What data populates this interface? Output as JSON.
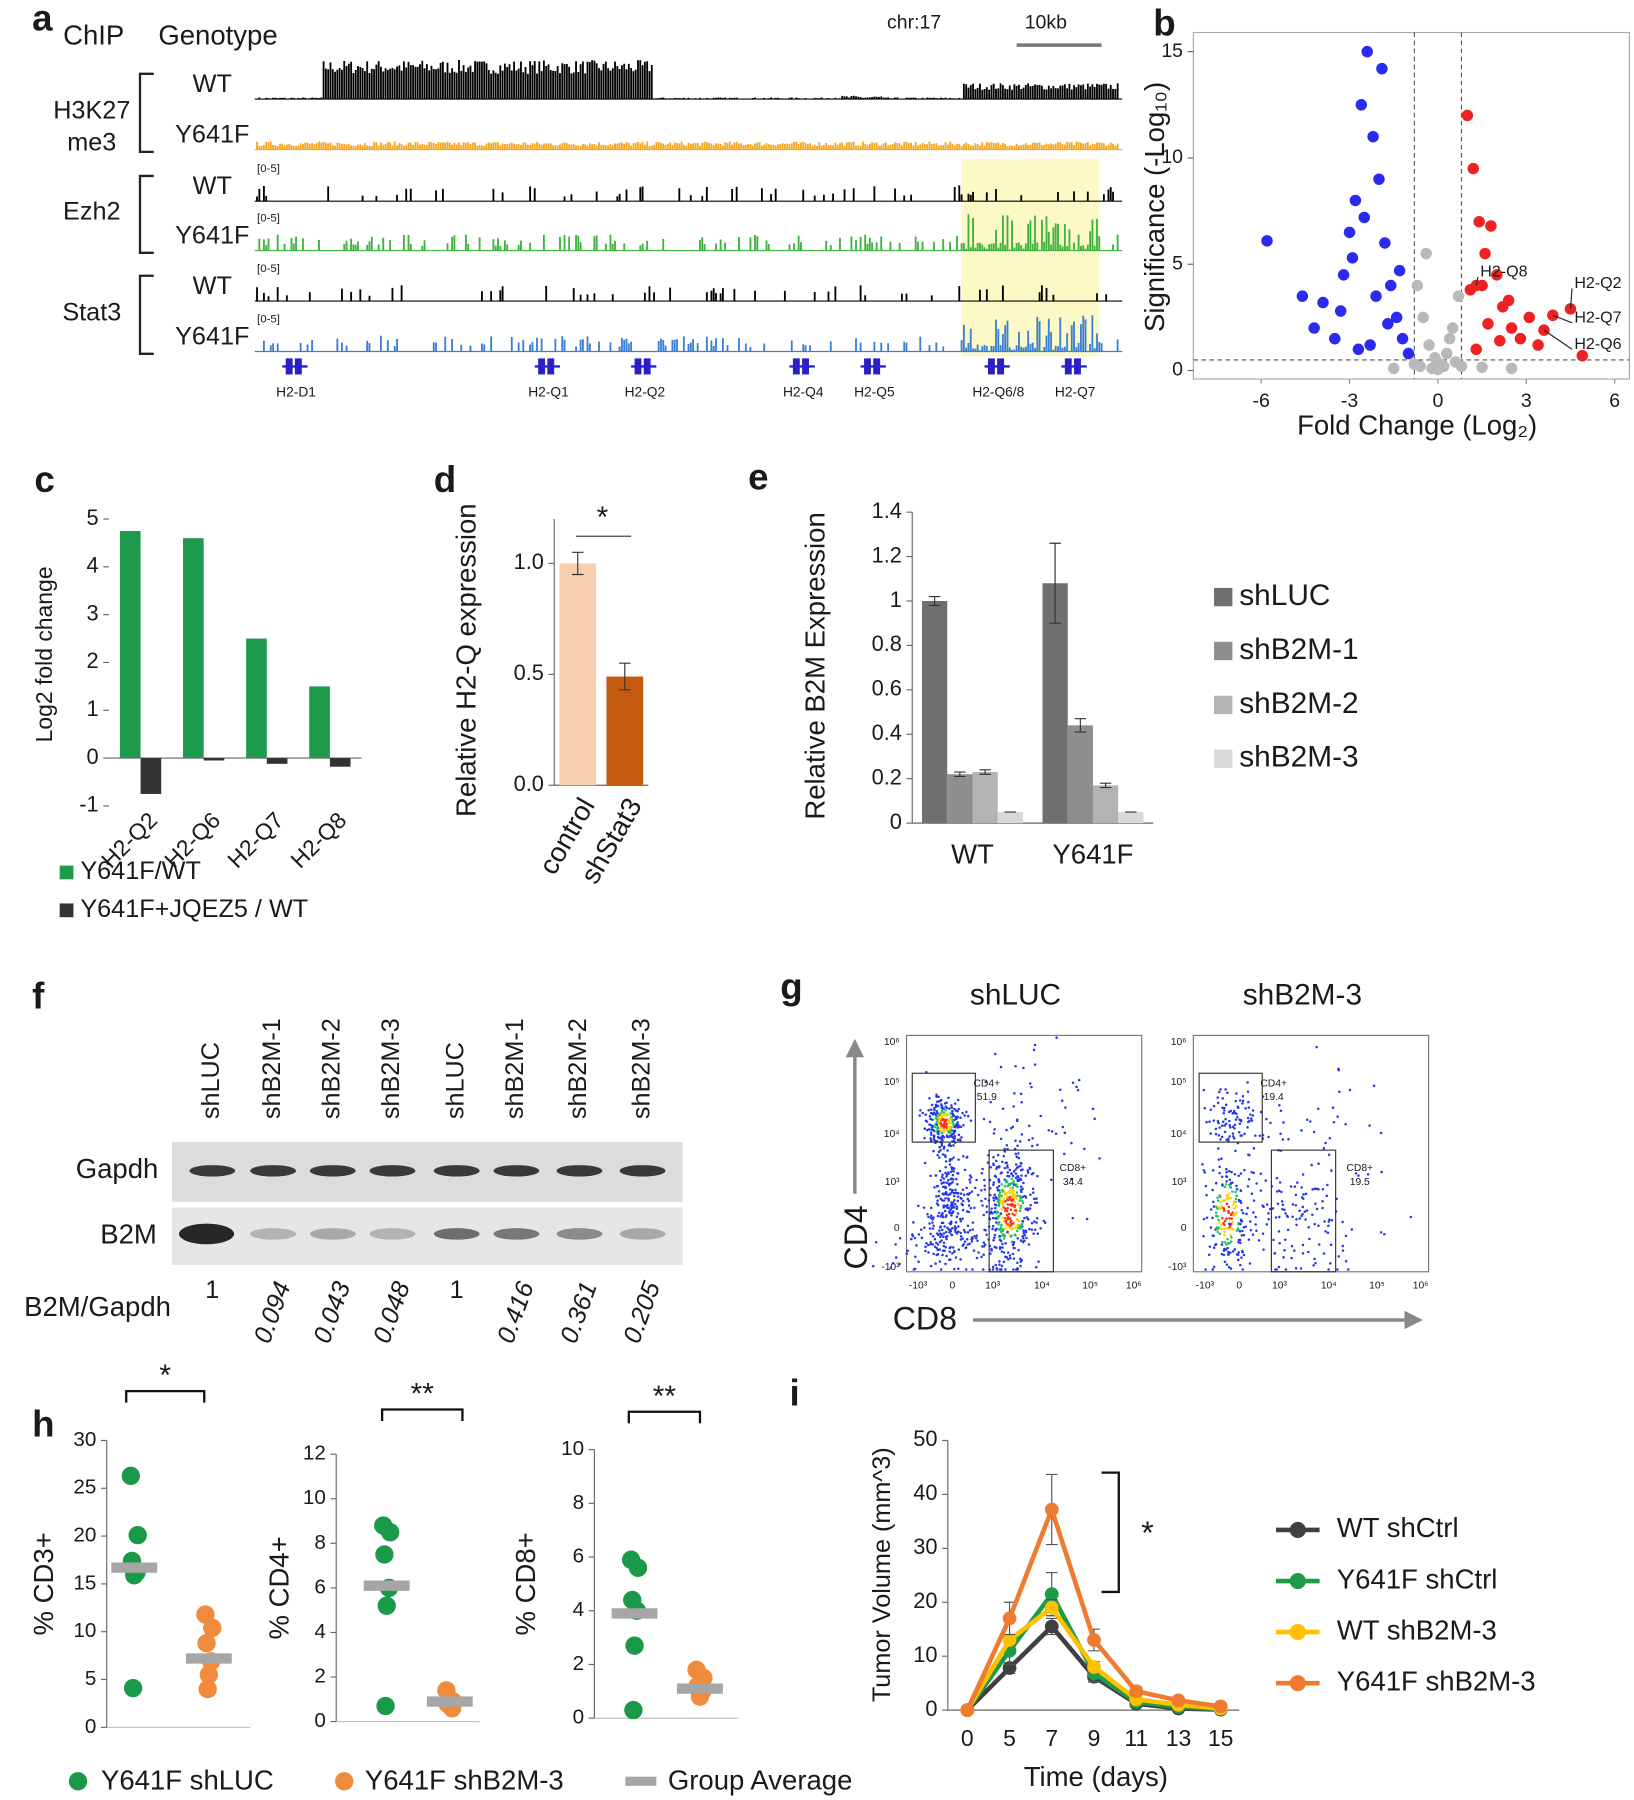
{
  "chart_data": [
    {
      "type": "tracks",
      "label": "a",
      "headers": [
        "ChIP",
        "Genotype"
      ],
      "locus": "chr:17",
      "scale_label": "10kb",
      "range_label": "[0-5]",
      "groups": [
        {
          "name": [
            "H3K27",
            "me3"
          ],
          "tracks": [
            {
              "genotype": "WT",
              "color": "#000000"
            },
            {
              "genotype": "Y641F",
              "color": "#f5a623"
            }
          ]
        },
        {
          "name": [
            "Ezh2"
          ],
          "tracks": [
            {
              "genotype": "WT",
              "color": "#000000"
            },
            {
              "genotype": "Y641F",
              "color": "#3cb33c"
            }
          ]
        },
        {
          "name": [
            "Stat3"
          ],
          "tracks": [
            {
              "genotype": "WT",
              "color": "#000000"
            },
            {
              "genotype": "Y641F",
              "color": "#3a7fd5"
            }
          ]
        }
      ],
      "genes": [
        "H2-D1",
        "H2-Q1",
        "H2-Q2",
        "H2-Q4",
        "H2-Q5",
        "H2-Q6/8",
        "H2-Q7"
      ],
      "gene_color": "#2a1fc4",
      "highlight_color": "#fdf9c6"
    },
    {
      "type": "scatter",
      "label": "b",
      "xlabel": "Fold Change (Log₂)",
      "ylabel": "Significance (-Log₁₀)",
      "xlim": [
        -8.3,
        6.5
      ],
      "ylim": [
        -0.4,
        15.9
      ],
      "xticks": [
        -6,
        -3,
        0,
        3,
        6
      ],
      "yticks": [
        0,
        5,
        10,
        15
      ],
      "vlines": [
        -0.8,
        0.8
      ],
      "hline": 0.5,
      "series": [
        {
          "color": "#2b2bf0",
          "x": [
            -5.8,
            -4.6,
            -4.2,
            -3.9,
            -3.5,
            -3.2,
            -3.0,
            -2.8,
            -2.6,
            -2.4,
            -2.2,
            -2.0,
            -1.8,
            -1.6,
            -1.4,
            -1.2,
            -1.0,
            -3.3,
            -2.9,
            -2.5,
            -2.1,
            -1.7,
            -1.3,
            -2.7,
            -2.3,
            -1.9
          ],
          "y": [
            6.1,
            3.5,
            2.0,
            3.2,
            1.5,
            4.5,
            6.5,
            8.0,
            12.5,
            15.0,
            11.0,
            9.0,
            6.0,
            4.0,
            2.5,
            1.5,
            0.8,
            2.8,
            5.3,
            7.2,
            3.5,
            2.2,
            4.7,
            1.0,
            1.2,
            14.2
          ]
        },
        {
          "color": "#b9b9b9",
          "x": [
            -0.7,
            -0.5,
            -0.3,
            -0.1,
            0.1,
            0.3,
            0.5,
            0.7,
            -0.6,
            -0.2,
            0.2,
            0.6,
            -0.4,
            0,
            0.4,
            -0.8,
            0.8,
            -1.5,
            1.5,
            2.5
          ],
          "y": [
            4.0,
            2.5,
            1.2,
            0.6,
            0.3,
            0.8,
            2.0,
            3.5,
            0.2,
            0.1,
            0.2,
            0.4,
            5.5,
            0.05,
            1.5,
            0.3,
            0.2,
            0.1,
            0.15,
            0.1
          ]
        },
        {
          "color": "#ee2222",
          "x": [
            1.0,
            1.2,
            1.4,
            1.6,
            1.8,
            2.0,
            2.2,
            2.5,
            2.8,
            3.1,
            3.4,
            3.9,
            4.5,
            4.9,
            1.1,
            1.3,
            1.7,
            2.1,
            1.5,
            2.4,
            1.3,
            3.6
          ],
          "y": [
            12.0,
            9.5,
            7.0,
            5.5,
            6.8,
            4.5,
            3.0,
            2.0,
            1.5,
            2.5,
            1.2,
            2.6,
            2.9,
            0.7,
            3.8,
            1.0,
            2.2,
            1.4,
            4.0,
            3.3,
            4.0,
            1.9
          ]
        }
      ],
      "annotations": [
        {
          "text": "H2-Q8",
          "x": 1.3,
          "y": 4.0
        },
        {
          "text": "H2-Q2",
          "x": 4.5,
          "y": 2.9
        },
        {
          "text": "H2-Q7",
          "x": 3.9,
          "y": 2.6
        },
        {
          "text": "H2-Q6",
          "x": 3.6,
          "y": 1.9
        }
      ]
    },
    {
      "type": "bar",
      "label": "c",
      "ylabel": "Log2 fold change",
      "categories": [
        "H2-Q2",
        "H2-Q6",
        "H2-Q7",
        "H2-Q8"
      ],
      "series": [
        {
          "name": "Y641F/WT",
          "color": "#1e9a4c",
          "values": [
            4.75,
            4.6,
            2.5,
            1.5
          ]
        },
        {
          "name": "Y641F+JQEZ5 / WT",
          "color": "#333333",
          "values": [
            -0.75,
            -0.05,
            -0.12,
            -0.18
          ]
        }
      ],
      "ylim": [
        -1,
        5
      ],
      "yticks": [
        -1,
        0,
        1,
        2,
        3,
        4,
        5
      ]
    },
    {
      "type": "bar",
      "label": "d",
      "ylabel": "Relative H2-Q expression",
      "categories": [
        "control",
        "shStat3"
      ],
      "series": [
        {
          "values": [
            1.0,
            0.49
          ],
          "errors": [
            0.05,
            0.06
          ],
          "colors": [
            "#f8cfae",
            "#c55a11"
          ]
        }
      ],
      "ylim": [
        0,
        1.2
      ],
      "yticks": [
        {
          "value": 0,
          "label": "0.0"
        },
        {
          "value": 0.5,
          "label": "0.5"
        },
        {
          "value": 1,
          "label": "1.0"
        }
      ],
      "significance": "*"
    },
    {
      "type": "bar",
      "label": "e",
      "ylabel": "Relative B2M Expression",
      "categories": [
        "WT",
        "Y641F"
      ],
      "series": [
        {
          "name": "shLUC",
          "color": "#6f6f6f",
          "values": [
            1.0,
            1.08
          ],
          "errors": [
            0.02,
            0.18
          ]
        },
        {
          "name": "shB2M-1",
          "color": "#8e8e8e",
          "values": [
            0.22,
            0.44
          ],
          "errors": [
            0.01,
            0.03
          ]
        },
        {
          "name": "shB2M-2",
          "color": "#b3b3b3",
          "values": [
            0.23,
            0.17
          ],
          "errors": [
            0.01,
            0.01
          ]
        },
        {
          "name": "shB2M-3",
          "color": "#d9d9d9",
          "values": [
            0.05,
            0.05
          ],
          "errors": [
            0,
            0
          ]
        }
      ],
      "ylim": [
        0,
        1.4
      ],
      "yticks": [
        0,
        0.2,
        0.4,
        0.6,
        0.8,
        1,
        1.2,
        1.4
      ]
    },
    {
      "type": "blot",
      "label": "f",
      "lanes": [
        "shLUC",
        "shB2M-1",
        "shB2M-2",
        "shB2M-3",
        "shLUC",
        "shB2M-1",
        "shB2M-2",
        "shB2M-3"
      ],
      "rows": [
        "Gapdh",
        "B2M"
      ],
      "ratio_label": "B2M/Gapdh",
      "ratios": [
        1,
        0.094,
        0.043,
        0.048,
        1,
        0.416,
        0.361,
        0.205
      ]
    },
    {
      "type": "flow",
      "label": "g",
      "xlabel": "CD8",
      "ylabel": "CD4",
      "tick_labels": [
        "10⁶",
        "10⁵",
        "10⁴",
        "10³",
        "0",
        "-10³"
      ],
      "plots": [
        {
          "title": "shLUC",
          "gates": [
            {
              "name": "CD4+",
              "value": 51.9
            },
            {
              "name": "CD8+",
              "value": 34.4
            }
          ]
        },
        {
          "title": "shB2M-3",
          "gates": [
            {
              "name": "CD4+",
              "value": 19.4
            },
            {
              "name": "CD8+",
              "value": 19.5
            }
          ]
        }
      ]
    },
    {
      "type": "strip",
      "label": "h",
      "series": [
        {
          "name": "Y641F shLUC",
          "color": "#1a9a48"
        },
        {
          "name": "Y641F shB2M-3",
          "color": "#f08a3c"
        }
      ],
      "mean_label": "Group Average",
      "mean_color": "#a6a6a6",
      "panels": [
        {
          "ylabel": "% CD3+",
          "ylim": [
            0,
            30
          ],
          "yticks": [
            0,
            5,
            10,
            15,
            20,
            25,
            30
          ],
          "significance": "*",
          "groups": [
            {
              "values": [
                26.3,
                20.1,
                17.4,
                16.2,
                15.9,
                4.1
              ],
              "mean": 16.7
            },
            {
              "values": [
                11.8,
                10.4,
                8.8,
                6.9,
                5.5,
                4.0
              ],
              "mean": 7.2
            }
          ]
        },
        {
          "ylabel": "% CD4+",
          "ylim": [
            0,
            12
          ],
          "yticks": [
            0,
            2,
            4,
            6,
            8,
            10,
            12
          ],
          "significance": "**",
          "groups": [
            {
              "values": [
                8.8,
                8.5,
                7.5,
                6.0,
                5.2,
                0.7
              ],
              "mean": 6.1
            },
            {
              "values": [
                1.4,
                0.9,
                0.8,
                0.6
              ],
              "mean": 0.9
            }
          ]
        },
        {
          "ylabel": "% CD8+",
          "ylim": [
            0,
            10
          ],
          "yticks": [
            0,
            2,
            4,
            6,
            8,
            10
          ],
          "significance": "**",
          "groups": [
            {
              "values": [
                5.9,
                5.6,
                4.4,
                4.0,
                2.7,
                0.3
              ],
              "mean": 3.9
            },
            {
              "values": [
                1.8,
                1.5,
                1.2,
                1.0,
                0.8
              ],
              "mean": 1.1
            }
          ]
        }
      ]
    },
    {
      "type": "line",
      "label": "i",
      "xlabel": "Time (days)",
      "ylabel": "Tumor Volume (mm^3)",
      "categories": [
        "0",
        "5",
        "7",
        "9",
        "11",
        "13",
        "15"
      ],
      "ylim": [
        0,
        50
      ],
      "yticks": [
        0,
        10,
        20,
        30,
        40,
        50
      ],
      "significance": "*",
      "series": [
        {
          "name": "WT shCtrl",
          "color": "#404040",
          "values": [
            0,
            7.8,
            15.5,
            6.2,
            1.2,
            0.3,
            0.1
          ],
          "errors": [
            0,
            1,
            1.5,
            1,
            0.3,
            0.2,
            0.1
          ]
        },
        {
          "name": "Y641F shCtrl",
          "color": "#1f9a48",
          "values": [
            0,
            11,
            21.5,
            6.8,
            1.5,
            0.6,
            0.2
          ],
          "errors": [
            0,
            2.5,
            4,
            1.5,
            0.5,
            0.3,
            0.2
          ]
        },
        {
          "name": "WT shB2M-3",
          "color": "#ffc000",
          "values": [
            0,
            13,
            19,
            8,
            2,
            1,
            0.3
          ],
          "errors": [
            0,
            1,
            1.5,
            1,
            0.3,
            0.2,
            0.1
          ]
        },
        {
          "name": "Y641F shB2M-3",
          "color": "#ef7b2e",
          "values": [
            0,
            17,
            37.2,
            13,
            3.5,
            1.8,
            0.7
          ],
          "errors": [
            0,
            3,
            6.5,
            2,
            0.8,
            0.6,
            0.3
          ]
        }
      ]
    }
  ]
}
